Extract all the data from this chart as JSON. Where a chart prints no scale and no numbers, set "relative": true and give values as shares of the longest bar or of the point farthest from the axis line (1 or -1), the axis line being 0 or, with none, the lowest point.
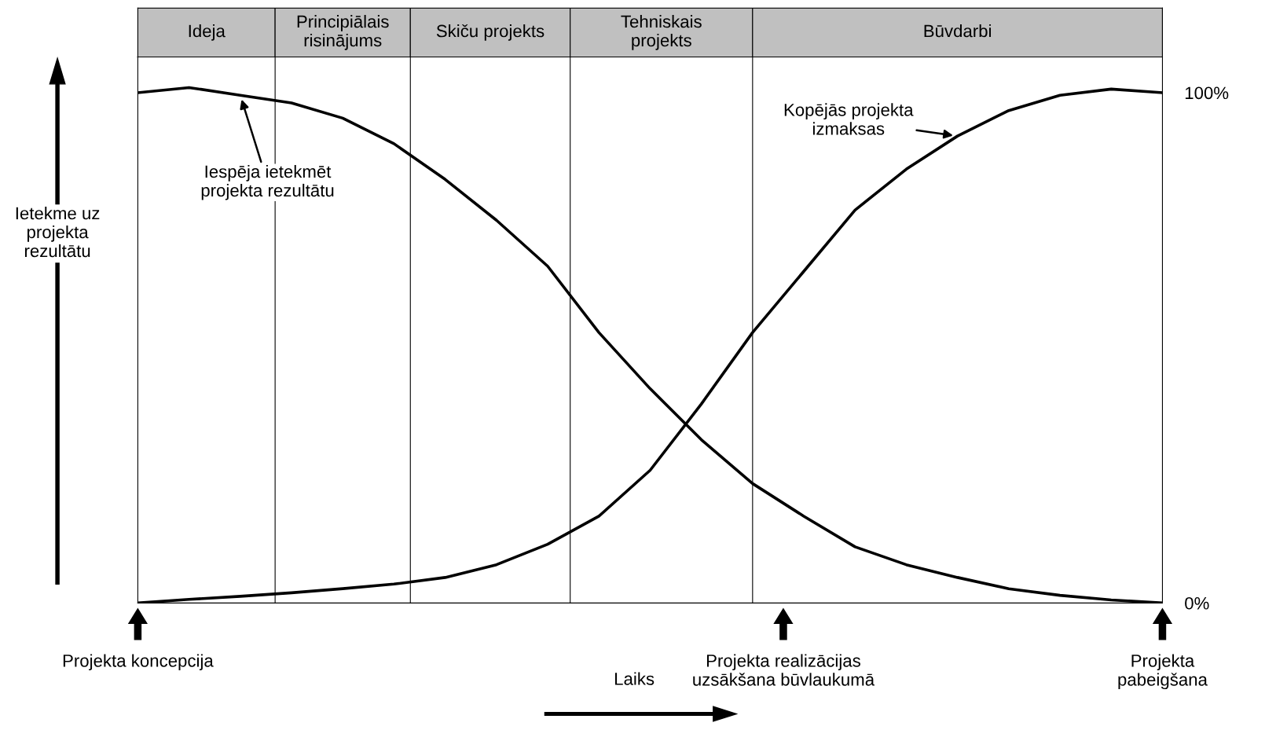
{
  "chart_data": [
    {
      "type": "bar",
      "orientation": "horizontal",
      "stacked": true,
      "relative": true,
      "categories": [
        null
      ],
      "series": [
        {
          "name": "Ideja",
          "color": "#c0c0c0",
          "values": [
            0.134
          ]
        },
        {
          "name": "Principiālais\nrisinājums",
          "color": "#c0c0c0",
          "values": [
            0.132
          ]
        },
        {
          "name": "Skiču projekts",
          "color": "#c0c0c0",
          "values": [
            0.156
          ]
        },
        {
          "name": "Tehniskais\nprojekts",
          "color": "#c0c0c0",
          "values": [
            0.178
          ]
        },
        {
          "name": "Būvdarbi",
          "color": "#c0c0c0",
          "values": [
            0.4
          ]
        }
      ]
    },
    {
      "type": "line",
      "xlabel": "Laiks",
      "ylabel": "Ietekme uz\nprojekta\nrezultātu",
      "categories": [
        null,
        null,
        null,
        null,
        null,
        null,
        null,
        null,
        null,
        null,
        null,
        null,
        null,
        null,
        null,
        null,
        null,
        null,
        null,
        null,
        null
      ],
      "ylim": [
        0,
        107
      ],
      "yticks": [
        {
          "value": 0,
          "label": "0%"
        },
        {
          "value": 100,
          "label": "100%"
        }
      ],
      "tick_labels": "y",
      "series": [
        {
          "name": "Iespēja ietekmēt\nprojekta rezultātu",
          "color": "#000000",
          "values": [
            100,
            101,
            99.5,
            98,
            95,
            90,
            83,
            75,
            66,
            53,
            42,
            32,
            23.4,
            17,
            11,
            7.5,
            5,
            2.8,
            1.5,
            0.6,
            0
          ]
        },
        {
          "name": "Kopējās projekta\nizmaksas",
          "color": "#000000",
          "values": [
            0,
            0.7,
            1.3,
            2,
            2.8,
            3.7,
            5,
            7.5,
            11.5,
            17,
            26,
            39,
            53,
            65,
            77,
            85,
            91.5,
            96.5,
            99.5,
            100.7,
            100
          ]
        }
      ],
      "annotations": [
        "Projekta koncepcija",
        "Projekta realizācijas\nuzsākšana būvlaukumā",
        "Projekta\npabeigšana"
      ],
      "grid": false,
      "legend": false,
      "line_style": "solid",
      "marker": "none"
    }
  ]
}
